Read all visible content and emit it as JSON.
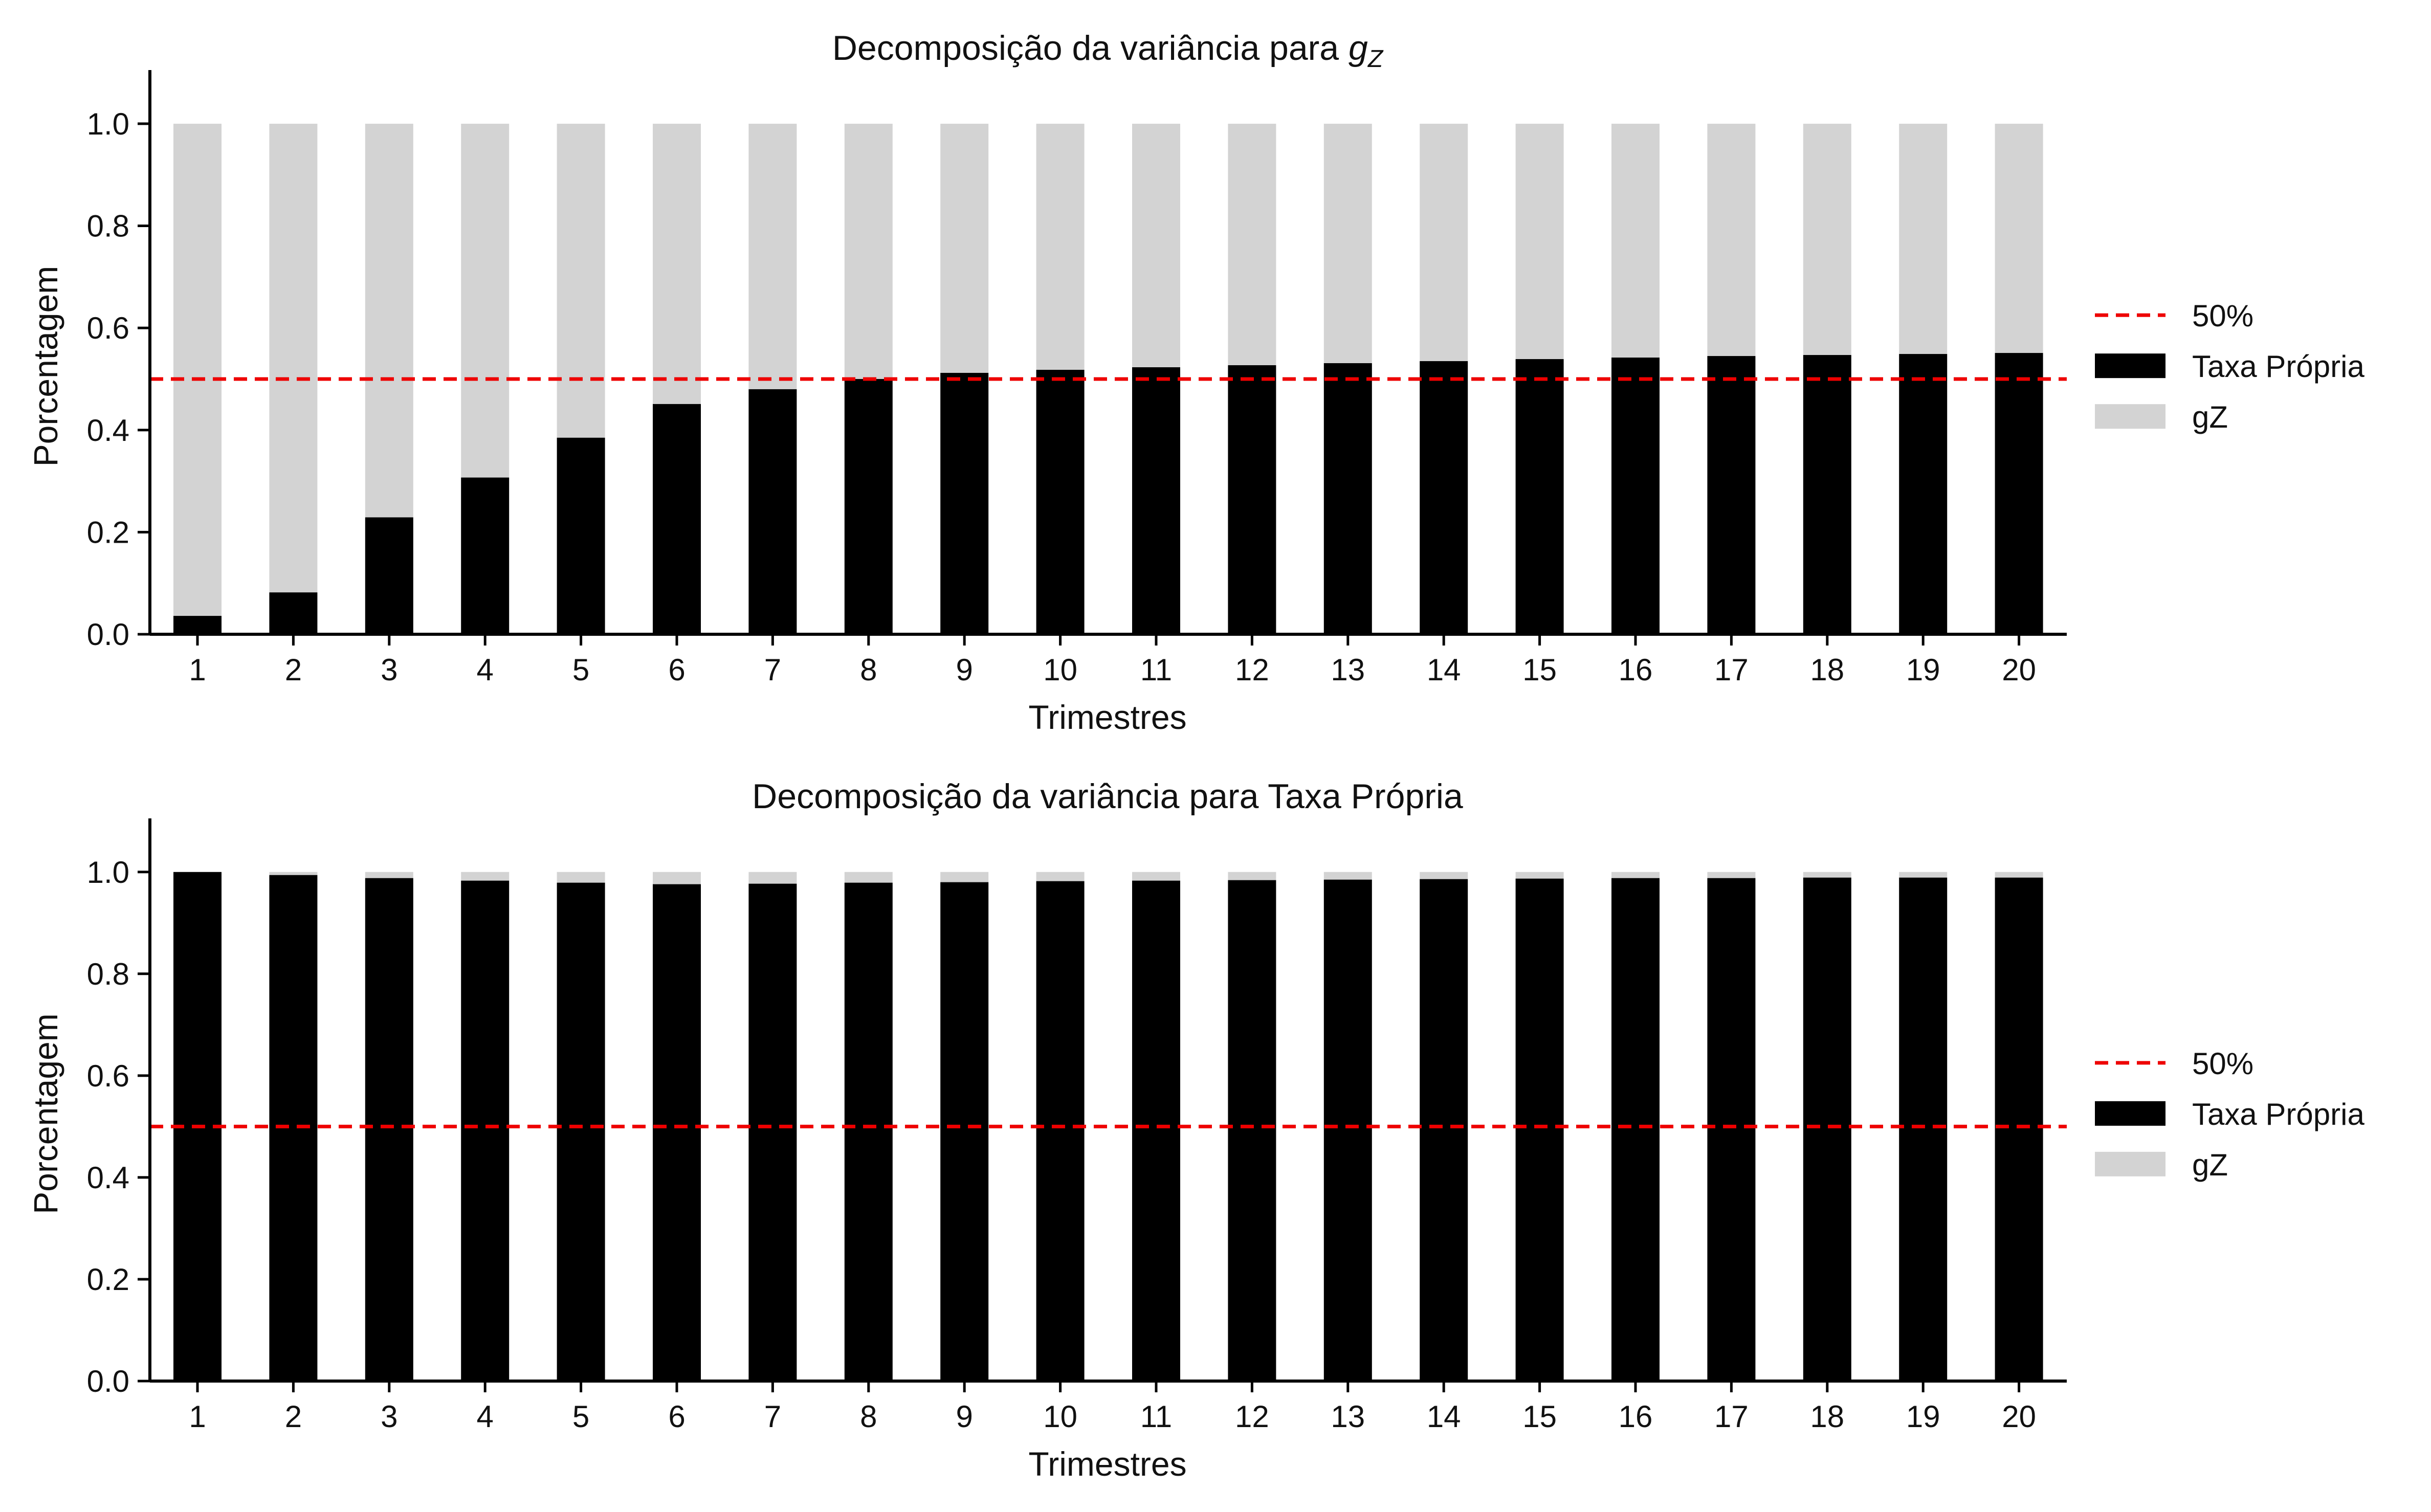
{
  "colors": {
    "own": "#000000",
    "other": "#d3d3d3",
    "threshold": "#ee0000",
    "axis": "#000000",
    "text": "#111111"
  },
  "chart_data": [
    {
      "type": "bar",
      "stacked": true,
      "title": "Decomposição da variância para gZ",
      "title_parts": {
        "prefix": "Decomposição da variância para ",
        "var": "g",
        "sub": "Z"
      },
      "xlabel": "Trimestres",
      "ylabel": "Porcentagem",
      "ylim": [
        0,
        1.05
      ],
      "yticks": [
        "0.0",
        "0.2",
        "0.4",
        "0.6",
        "0.8",
        "1.0"
      ],
      "categories": [
        "1",
        "2",
        "3",
        "4",
        "5",
        "6",
        "7",
        "8",
        "9",
        "10",
        "11",
        "12",
        "13",
        "14",
        "15",
        "16",
        "17",
        "18",
        "19",
        "20"
      ],
      "threshold": 0.5,
      "legend": {
        "position": "right",
        "items": [
          "50%",
          "Taxa Própria",
          "gZ"
        ]
      },
      "series": [
        {
          "name": "Taxa Própria",
          "values": [
            0.036,
            0.082,
            0.229,
            0.307,
            0.385,
            0.451,
            0.48,
            0.5,
            0.512,
            0.518,
            0.523,
            0.527,
            0.531,
            0.535,
            0.539,
            0.542,
            0.545,
            0.547,
            0.549,
            0.551
          ]
        },
        {
          "name": "gZ",
          "values": [
            0.964,
            0.918,
            0.771,
            0.693,
            0.615,
            0.549,
            0.52,
            0.5,
            0.488,
            0.482,
            0.477,
            0.473,
            0.469,
            0.465,
            0.461,
            0.458,
            0.455,
            0.453,
            0.451,
            0.449
          ]
        }
      ]
    },
    {
      "type": "bar",
      "stacked": true,
      "title": "Decomposição da variância para Taxa Própria",
      "xlabel": "Trimestres",
      "ylabel": "Porcentagem",
      "ylim": [
        0,
        1.05
      ],
      "yticks": [
        "0.0",
        "0.2",
        "0.4",
        "0.6",
        "0.8",
        "1.0"
      ],
      "categories": [
        "1",
        "2",
        "3",
        "4",
        "5",
        "6",
        "7",
        "8",
        "9",
        "10",
        "11",
        "12",
        "13",
        "14",
        "15",
        "16",
        "17",
        "18",
        "19",
        "20"
      ],
      "threshold": 0.5,
      "legend": {
        "position": "right",
        "items": [
          "50%",
          "Taxa Própria",
          "gZ"
        ]
      },
      "series": [
        {
          "name": "Taxa Própria",
          "values": [
            1.0,
            0.994,
            0.988,
            0.983,
            0.979,
            0.976,
            0.977,
            0.979,
            0.98,
            0.982,
            0.983,
            0.984,
            0.985,
            0.986,
            0.987,
            0.988,
            0.988,
            0.989,
            0.989,
            0.989
          ]
        },
        {
          "name": "gZ",
          "values": [
            0.0,
            0.006,
            0.012,
            0.017,
            0.021,
            0.024,
            0.023,
            0.021,
            0.02,
            0.018,
            0.017,
            0.016,
            0.015,
            0.014,
            0.013,
            0.012,
            0.012,
            0.011,
            0.011,
            0.011
          ]
        }
      ]
    }
  ]
}
